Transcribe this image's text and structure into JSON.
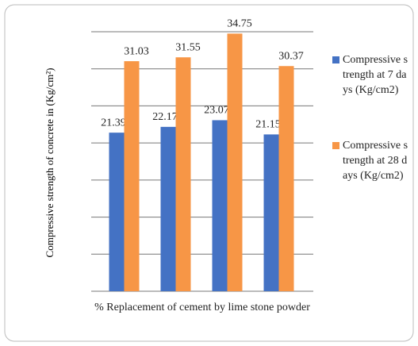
{
  "chart_data": {
    "type": "bar",
    "categories": [
      null,
      null,
      null,
      null
    ],
    "series": [
      {
        "name": "Compressive strength at 7 days (Kg/cm2)",
        "color": "#4472c4",
        "values": [
          21.39,
          22.17,
          23.07,
          21.15
        ]
      },
      {
        "name": "Compressive strength at 28 days (Kg/cm2)",
        "color": "#f79646",
        "values": [
          31.03,
          31.55,
          34.75,
          30.37
        ]
      }
    ],
    "ylabel": "Compressive strength of concrete in (Kg/cm²)",
    "xlabel": "% Replacement of cement by lime stone powder",
    "ylim": [
      0,
      35
    ],
    "yticks": [
      0,
      5,
      10,
      15,
      20,
      25,
      30,
      35
    ],
    "grid": true,
    "legend": "right"
  }
}
